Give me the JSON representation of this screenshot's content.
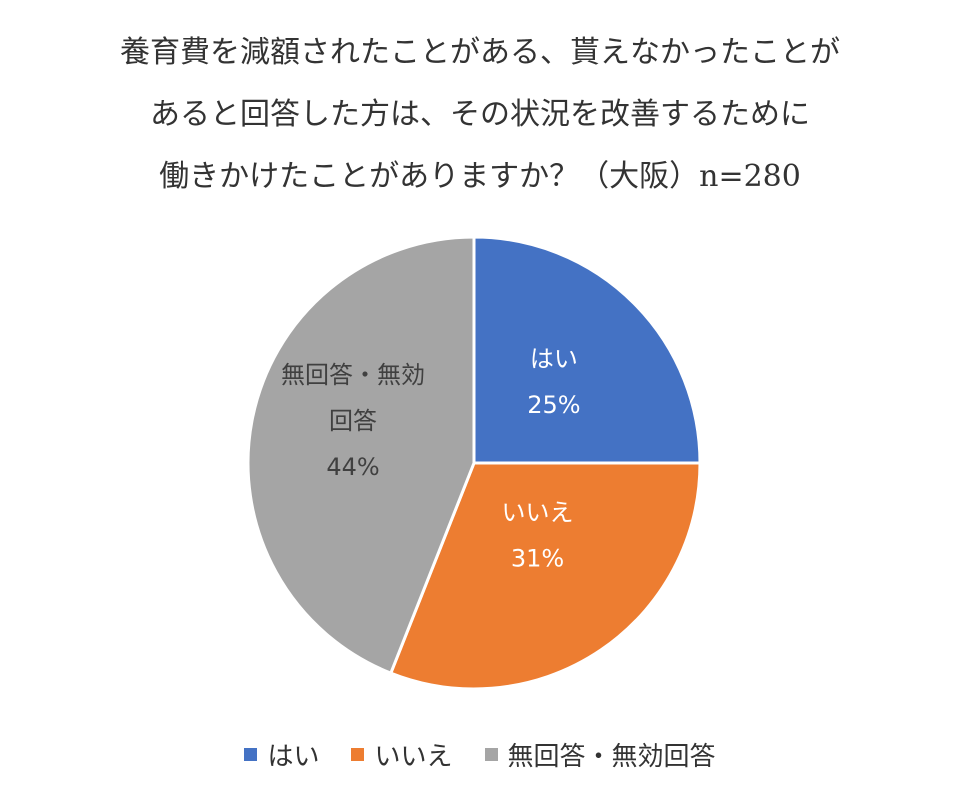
{
  "chart_data": {
    "type": "pie",
    "title_lines": [
      "養育費を減額されたことがある、貰えなかったことが",
      "あると回答した方は、その状況を改善するために",
      "働きかけたことがありますか？（大阪）n=280"
    ],
    "categories": [
      "はい",
      "いいえ",
      "無回答・無効回答"
    ],
    "values": [
      25,
      31,
      44
    ],
    "value_labels": [
      "25%",
      "31%",
      "44%"
    ],
    "slice_labels": [
      [
        "はい"
      ],
      [
        "いいえ"
      ],
      [
        "無回答・無効",
        "回答"
      ]
    ],
    "colors": [
      "#4472C4",
      "#ED7D31",
      "#A5A5A5"
    ],
    "label_colors": [
      "#ffffff",
      "#ffffff",
      "#404040"
    ],
    "legend_position": "bottom"
  }
}
